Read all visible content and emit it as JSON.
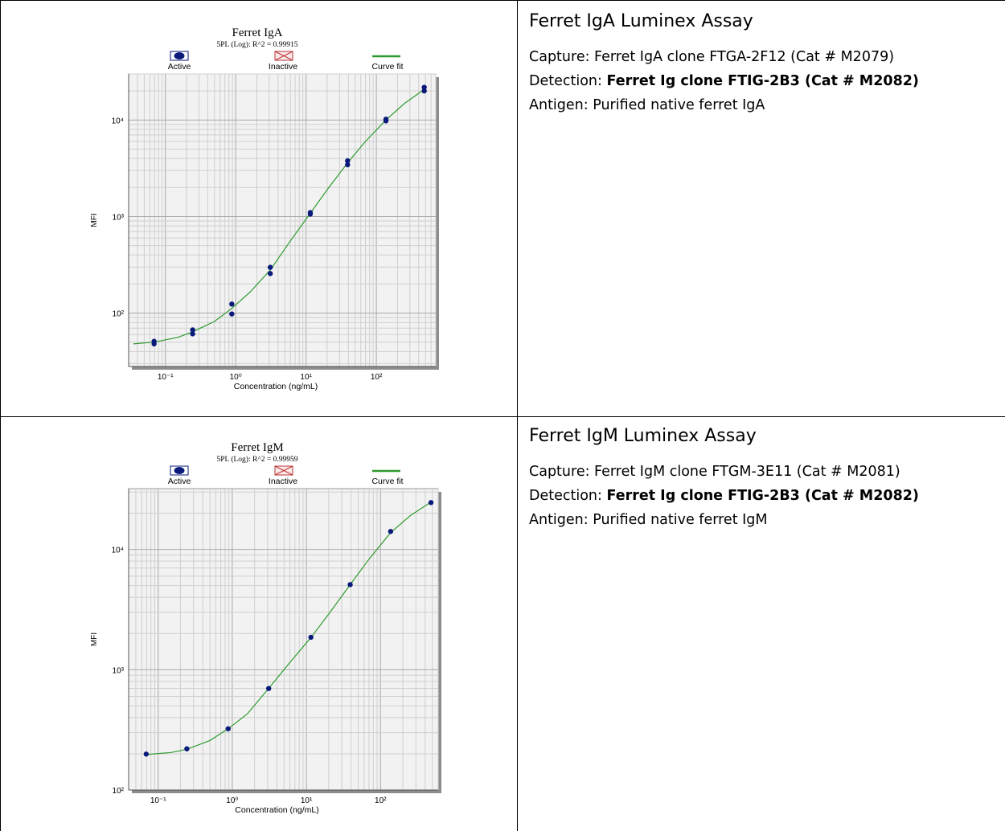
{
  "panels": [
    {
      "assay_title": "Ferret IgA Luminex Assay",
      "capture": {
        "label": "Capture: ",
        "value": "Ferret IgA clone FTGA-2F12 (Cat # M2079)"
      },
      "detection": {
        "label": "Detection: ",
        "value": "Ferret Ig clone FTIG-2B3 (Cat # M2082)"
      },
      "antigen": {
        "label": "Antigen: ",
        "value": "Purified native ferret IgA"
      }
    },
    {
      "assay_title": "Ferret IgM Luminex Assay",
      "capture": {
        "label": "Capture: ",
        "value": "Ferret IgM clone FTGM-3E11 (Cat # M2081)"
      },
      "detection": {
        "label": "Detection: ",
        "value": "Ferret Ig clone FTIG-2B3 (Cat # M2082)"
      },
      "antigen": {
        "label": "Antigen: ",
        "value": "Purified native ferret IgM"
      }
    }
  ],
  "chart_data": [
    {
      "type": "scatter",
      "title": "Ferret IgA",
      "subtitle": "5PL (Log): R^2 = 0.99915",
      "xlabel": "Concentration (ng/mL)",
      "ylabel": "MFI",
      "x_scale": "log",
      "y_scale": "log",
      "xlim": [
        0.03,
        700
      ],
      "ylim": [
        28,
        30000
      ],
      "x_ticks": [
        {
          "value": 0.1,
          "label": "10⁻¹"
        },
        {
          "value": 1,
          "label": "10⁰"
        },
        {
          "value": 10,
          "label": "10¹"
        },
        {
          "value": 100,
          "label": "10²"
        }
      ],
      "y_ticks": [
        {
          "value": 100,
          "label": "10²"
        },
        {
          "value": 1000,
          "label": "10³"
        },
        {
          "value": 10000,
          "label": "10⁴"
        }
      ],
      "legend": [
        "Active",
        "Inactive",
        "Curve fit"
      ],
      "legend_position": "top",
      "grid": true,
      "point_color": "#0a1a7a",
      "curve_color": "#2e9a2e",
      "points": [
        {
          "x": 0.069,
          "y": 51
        },
        {
          "x": 0.069,
          "y": 48
        },
        {
          "x": 0.244,
          "y": 67
        },
        {
          "x": 0.244,
          "y": 61
        },
        {
          "x": 0.88,
          "y": 124
        },
        {
          "x": 0.88,
          "y": 98
        },
        {
          "x": 3.1,
          "y": 298
        },
        {
          "x": 3.1,
          "y": 257
        },
        {
          "x": 11.5,
          "y": 1100
        },
        {
          "x": 11.5,
          "y": 1060
        },
        {
          "x": 39,
          "y": 3780
        },
        {
          "x": 39,
          "y": 3440
        },
        {
          "x": 137,
          "y": 10200
        },
        {
          "x": 137,
          "y": 9800
        },
        {
          "x": 480,
          "y": 21800
        },
        {
          "x": 480,
          "y": 20000
        }
      ],
      "curve": [
        {
          "x": 0.035,
          "y": 48
        },
        {
          "x": 0.069,
          "y": 50
        },
        {
          "x": 0.15,
          "y": 56
        },
        {
          "x": 0.244,
          "y": 64
        },
        {
          "x": 0.5,
          "y": 82
        },
        {
          "x": 0.88,
          "y": 112
        },
        {
          "x": 1.6,
          "y": 165
        },
        {
          "x": 3.1,
          "y": 280
        },
        {
          "x": 6,
          "y": 560
        },
        {
          "x": 11.5,
          "y": 1080
        },
        {
          "x": 20,
          "y": 1900
        },
        {
          "x": 39,
          "y": 3600
        },
        {
          "x": 70,
          "y": 6000
        },
        {
          "x": 137,
          "y": 10000
        },
        {
          "x": 250,
          "y": 14800
        },
        {
          "x": 480,
          "y": 20800
        }
      ]
    },
    {
      "type": "scatter",
      "title": "Ferret IgM",
      "subtitle": "5PL (Log): R^2 = 0.99959",
      "xlabel": "Concentration (ng/mL)",
      "ylabel": "MFI",
      "x_scale": "log",
      "y_scale": "log",
      "xlim": [
        0.04,
        600
      ],
      "ylim": [
        100,
        32000
      ],
      "x_ticks": [
        {
          "value": 0.1,
          "label": "10⁻¹"
        },
        {
          "value": 1,
          "label": "10⁰"
        },
        {
          "value": 10,
          "label": "10¹"
        },
        {
          "value": 100,
          "label": "10²"
        }
      ],
      "y_ticks": [
        {
          "value": 100,
          "label": "10²"
        },
        {
          "value": 1000,
          "label": "10³"
        },
        {
          "value": 10000,
          "label": "10⁴"
        }
      ],
      "legend": [
        "Active",
        "Inactive",
        "Curve fit"
      ],
      "legend_position": "top",
      "grid": true,
      "point_color": "#0a1a7a",
      "curve_color": "#2e9a2e",
      "points": [
        {
          "x": 0.069,
          "y": 199
        },
        {
          "x": 0.244,
          "y": 220
        },
        {
          "x": 0.88,
          "y": 323
        },
        {
          "x": 3.1,
          "y": 698
        },
        {
          "x": 11.5,
          "y": 1860
        },
        {
          "x": 39,
          "y": 5100
        },
        {
          "x": 137,
          "y": 14100
        },
        {
          "x": 480,
          "y": 24500
        }
      ],
      "curve": [
        {
          "x": 0.069,
          "y": 197
        },
        {
          "x": 0.15,
          "y": 205
        },
        {
          "x": 0.244,
          "y": 218
        },
        {
          "x": 0.5,
          "y": 258
        },
        {
          "x": 0.88,
          "y": 323
        },
        {
          "x": 1.6,
          "y": 430
        },
        {
          "x": 3.1,
          "y": 700
        },
        {
          "x": 6,
          "y": 1150
        },
        {
          "x": 11.5,
          "y": 1850
        },
        {
          "x": 20,
          "y": 2900
        },
        {
          "x": 39,
          "y": 5100
        },
        {
          "x": 70,
          "y": 8300
        },
        {
          "x": 137,
          "y": 13800
        },
        {
          "x": 250,
          "y": 19000
        },
        {
          "x": 480,
          "y": 24800
        }
      ]
    }
  ]
}
